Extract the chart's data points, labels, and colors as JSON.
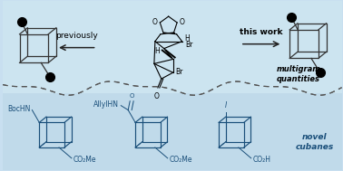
{
  "bg_color": "#c8dff0",
  "previously_text": "previously",
  "this_work_text": "this work",
  "multigram_text": "multigram\nquantities",
  "novel_cubanes_text": "novel\ncubanes",
  "blue_text_color": "#1a4f7a",
  "label_boc": "BocHN",
  "label_allyl": "AllylHN",
  "label_co2me_1": "CO₂Me",
  "label_co2me_2": "CO₂Me",
  "label_co2h": "CO₂H",
  "label_I": "I",
  "label_Br1": "Br",
  "label_Br2": "Br",
  "label_H1": "H",
  "label_H2": "H",
  "label_O_dioxolane1": "O",
  "label_O_dioxolane2": "O",
  "label_O_ketone": "O",
  "dashed_color": "#555555",
  "arrow_color": "#222222",
  "gray_color": "#333333",
  "black": "#000000",
  "fig_w": 3.78,
  "fig_h": 1.89,
  "dpi": 100
}
